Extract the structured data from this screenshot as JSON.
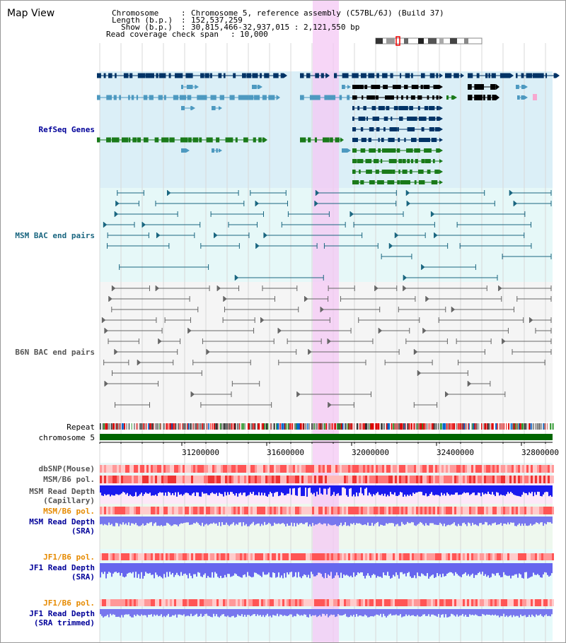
{
  "view_title": "Map View",
  "info": {
    "chromosome_key": "Chromosome",
    "chromosome_val": "Chromosome 5, reference assembly (C57BL/6J) (Build 37)",
    "length_key": "Length (b.p.)",
    "length_val": "152,537,259",
    "show_key": "Show (b.p.)",
    "show_val": "30,815,466-32,937,015 : 2,121,550 bp",
    "coverage_key": "Read coverage check span",
    "coverage_val": "10,000"
  },
  "tracks": {
    "refseq": "RefSeq Genes",
    "msm_bac": "MSM BAC end pairs",
    "b6n_bac": "B6N BAC end pairs",
    "repeat": "Repeat",
    "chromosome": "chromosome 5",
    "dbsnp": "dbSNP(Mouse)",
    "msm_b6_pol_1": "MSM/B6 pol.",
    "msm_read_depth_cap_1": "MSM Read Depth",
    "msm_read_depth_cap_2": "(Capillary)",
    "msm_b6_pol_2": "MSM/B6 pol.",
    "msm_read_depth_sra_1": "MSM Read Depth",
    "msm_read_depth_sra_2": "(SRA)",
    "jf1_b6_pol_1": "JF1/B6 pol.",
    "jf1_read_depth_1": "JF1 Read Depth",
    "jf1_read_depth_2": "(SRA)",
    "jf1_b6_pol_2": "JF1/B6 pol.",
    "jf1_read_depth_tr_1": "JF1 Read Depth",
    "jf1_read_depth_tr_2": "(SRA trimmed)"
  },
  "axis": {
    "ticks": [
      "31200000",
      "31600000",
      "32000000",
      "32400000",
      "32800000"
    ]
  },
  "colors": {
    "refseq_dark": "#003366",
    "refseq_light": "#4d99c0",
    "refseq_green": "#1a7a1a",
    "msm_line": "#1a6680",
    "b6n_line": "#666666",
    "highlight": "#f4c8f4",
    "label_blue": "#000099",
    "label_teal": "#1a6680",
    "label_orange": "#e68a00",
    "label_gray": "#555555"
  }
}
